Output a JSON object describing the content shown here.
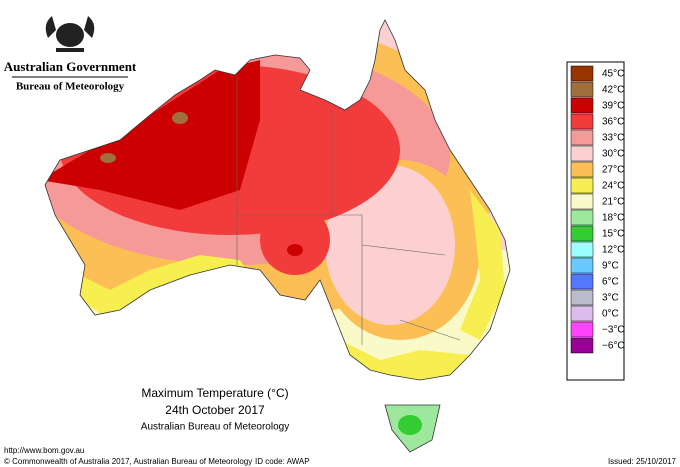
{
  "header": {
    "government": "Australian Government",
    "agency": "Bureau of Meteorology"
  },
  "legend": [
    {
      "label": "45°C",
      "color": "#993300"
    },
    {
      "label": "42°C",
      "color": "#a0703c"
    },
    {
      "label": "39°C",
      "color": "#cc0000"
    },
    {
      "label": "36°C",
      "color": "#f23c3c"
    },
    {
      "label": "33°C",
      "color": "#f59999"
    },
    {
      "label": "30°C",
      "color": "#fcd0d0"
    },
    {
      "label": "27°C",
      "color": "#fbbf55"
    },
    {
      "label": "24°C",
      "color": "#f7ef50"
    },
    {
      "label": "21°C",
      "color": "#fafac8"
    },
    {
      "label": "18°C",
      "color": "#9ee89e"
    },
    {
      "label": "15°C",
      "color": "#33cc33"
    },
    {
      "label": "12°C",
      "color": "#99ffff"
    },
    {
      "label": "9°C",
      "color": "#66ccff"
    },
    {
      "label": "6°C",
      "color": "#5577ff"
    },
    {
      "label": "3°C",
      "color": "#bbbbcc"
    },
    {
      "label": "0°C",
      "color": "#ddbbee"
    },
    {
      "label": "−3°C",
      "color": "#ff44ff"
    },
    {
      "label": "−6°C",
      "color": "#990099"
    }
  ],
  "map_title": {
    "title": "Maximum Temperature (°C)",
    "date": "24th October 2017",
    "source": "Australian Bureau of Meteorology"
  },
  "footer": {
    "url": "http://www.bom.gov.au",
    "copyright": "© Commonwealth of Australia 2017, Australian Bureau of Meteorology",
    "id_code": "ID code: AWAP",
    "issued": "Issued: 25/10/2017"
  }
}
